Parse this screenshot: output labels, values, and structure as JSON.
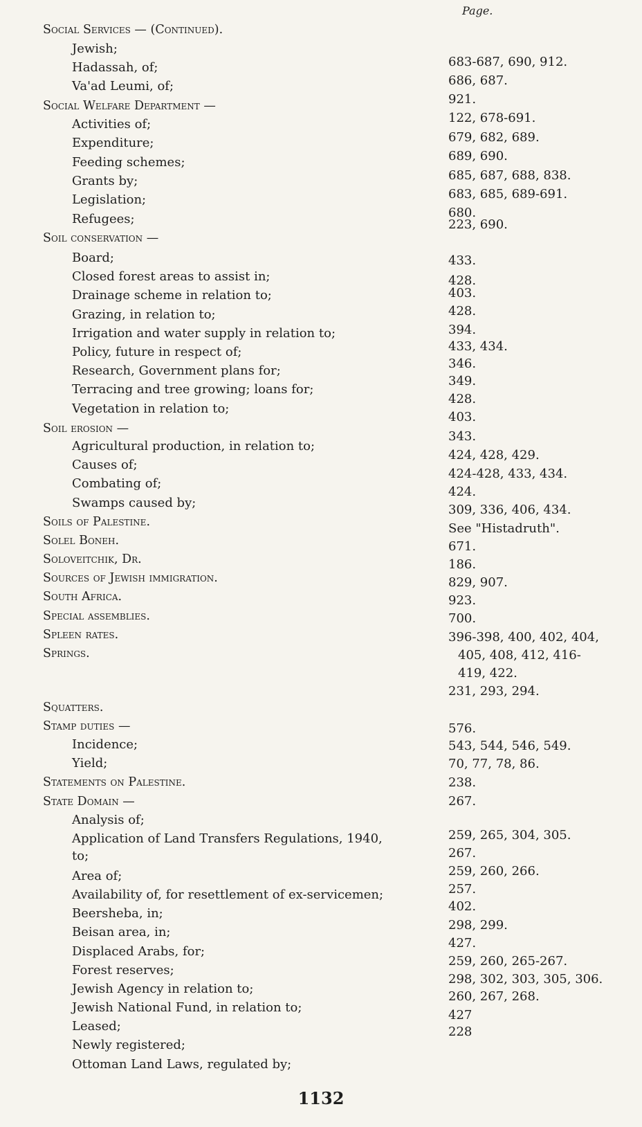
{
  "column_header": "Page.",
  "entries": [
    {
      "text": "Social Services — (Continued).",
      "level": "heading"
    },
    {
      "text": "Jewish;",
      "level": "sub"
    },
    {
      "text": "Hadassah, of;",
      "level": "sub"
    },
    {
      "text": "Va'ad Leumi, of;",
      "level": "sub"
    },
    {
      "text": "Social Welfare Department —",
      "level": "heading"
    },
    {
      "text": "Activities of;",
      "level": "sub"
    },
    {
      "text": "Expenditure;",
      "level": "sub"
    },
    {
      "text": "Feeding schemes;",
      "level": "sub"
    },
    {
      "text": "Grants by;",
      "level": "sub"
    },
    {
      "text": "Legislation;",
      "level": "sub"
    },
    {
      "text": "Refugees;",
      "level": "sub"
    },
    {
      "text": "Soil conservation —",
      "level": "heading"
    },
    {
      "text": "Board;",
      "level": "sub"
    },
    {
      "text": "Closed forest areas to assist in;",
      "level": "sub"
    },
    {
      "text": "Drainage scheme in relation to;",
      "level": "sub"
    },
    {
      "text": "Grazing, in relation to;",
      "level": "sub"
    },
    {
      "text": "Irrigation and water supply in relation to;",
      "level": "sub"
    },
    {
      "text": "Policy, future in respect of;",
      "level": "sub"
    },
    {
      "text": "Research, Government plans for;",
      "level": "sub"
    },
    {
      "text": "Terracing and tree growing; loans for;",
      "level": "sub"
    },
    {
      "text": "Vegetation in relation to;",
      "level": "sub"
    },
    {
      "text": "Soil erosion —",
      "level": "heading"
    },
    {
      "text": "Agricultural production, in relation to;",
      "level": "sub"
    },
    {
      "text": "Causes of;",
      "level": "sub"
    },
    {
      "text": "Combating of;",
      "level": "sub"
    },
    {
      "text": "Swamps caused by;",
      "level": "sub"
    },
    {
      "text": "Soils of Palestine.",
      "level": "heading"
    },
    {
      "text": "Solel Boneh.",
      "level": "heading"
    },
    {
      "text": "Soloveitchik, Dr.",
      "level": "heading"
    },
    {
      "text": "Sources of Jewish immigration.",
      "level": "heading"
    },
    {
      "text": "South Africa.",
      "level": "heading"
    },
    {
      "text": "Special assemblies.",
      "level": "heading"
    },
    {
      "text": "Spleen rates.",
      "level": "heading"
    },
    {
      "text": "Springs.",
      "level": "heading"
    },
    {
      "text": "Squatters.",
      "level": "heading"
    },
    {
      "text": "Stamp duties —",
      "level": "heading"
    },
    {
      "text": "Incidence;",
      "level": "sub"
    },
    {
      "text": "Yield;",
      "level": "sub"
    },
    {
      "text": "Statements on Palestine.",
      "level": "heading"
    },
    {
      "text": "State Domain —",
      "level": "heading"
    },
    {
      "text": "Analysis of;",
      "level": "sub"
    },
    {
      "text": "Application of Land Transfers Regulations, 1940,",
      "level": "sub"
    },
    {
      "text": "to;",
      "level": "sub"
    },
    {
      "text": "Area of;",
      "level": "sub"
    },
    {
      "text": "Availability of, for resettlement of ex-servicemen;",
      "level": "sub"
    },
    {
      "text": "Beersheba, in;",
      "level": "sub"
    },
    {
      "text": "Beisan area, in;",
      "level": "sub"
    },
    {
      "text": "Displaced Arabs, for;",
      "level": "sub"
    },
    {
      "text": "Forest reserves;",
      "level": "sub"
    },
    {
      "text": "Jewish Agency in relation to;",
      "level": "sub"
    },
    {
      "text": "Jewish National Fund, in relation to;",
      "level": "sub"
    },
    {
      "text": "Leased;",
      "level": "sub"
    },
    {
      "text": "Newly registered;",
      "level": "sub"
    },
    {
      "text": "Ottoman Land Laws, regulated by;",
      "level": "sub"
    }
  ],
  "pages": [
    "683-687, 690, 912.",
    "686, 687.",
    "921.",
    "122, 678-691.",
    "679, 682, 689.",
    "689, 690.",
    "685, 687, 688, 838.",
    "683, 685, 689-691.",
    "680.",
    "223, 690.",
    "433.",
    "428.",
    "403.",
    "428.",
    "394.",
    "433, 434.",
    "346.",
    "349.",
    "428.",
    "403.",
    "343.",
    "424, 428, 429.",
    "424-428, 433, 434.",
    "424.",
    "309, 336, 406, 434.",
    "See \"Histadruth\".",
    "671.",
    "186.",
    "829, 907.",
    "923.",
    "700.",
    "396-398, 400, 402, 404,",
    "405, 408, 412, 416-",
    "419, 422.",
    "231, 293, 294.",
    "576.",
    "543, 544, 546, 549.",
    "70, 77, 78, 86.",
    "238.",
    "267.",
    "259, 265, 304, 305.",
    "267.",
    "259, 260, 266.",
    "257.",
    "402.",
    "298, 299.",
    "427.",
    "259, 260, 265-267.",
    "298, 302, 303, 305, 306.",
    "260, 267, 268.",
    "427",
    "228"
  ],
  "page_number": "1132"
}
